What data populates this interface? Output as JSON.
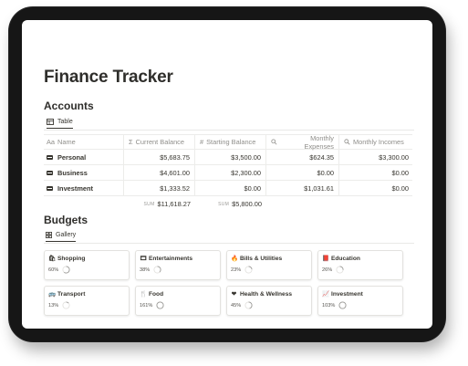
{
  "page": {
    "title": "Finance Tracker"
  },
  "accounts": {
    "heading": "Accounts",
    "view_label": "Table",
    "columns": [
      {
        "icon": "Aa",
        "label": "Name"
      },
      {
        "icon": "Σ",
        "label": "Current Balance"
      },
      {
        "icon": "#",
        "label": "Starting Balance"
      },
      {
        "icon": "🔍",
        "label": "Monthly Expenses"
      },
      {
        "icon": "🔍",
        "label": "Monthly Incomes"
      }
    ],
    "rows": [
      {
        "name": "Personal",
        "current": "$5,683.75",
        "starting": "$3,500.00",
        "expenses": "$624.35",
        "incomes": "$3,300.00"
      },
      {
        "name": "Business",
        "current": "$4,601.00",
        "starting": "$2,300.00",
        "expenses": "$0.00",
        "incomes": "$0.00"
      },
      {
        "name": "Investment",
        "current": "$1,333.52",
        "starting": "$0.00",
        "expenses": "$1,031.61",
        "incomes": "$0.00"
      }
    ],
    "sum_label": "SUM",
    "sum_current": "$11,618.27",
    "sum_starting": "$5,800.00"
  },
  "budgets": {
    "heading": "Budgets",
    "view_label": "Gallery",
    "cards": [
      {
        "name": "Shopping",
        "icon": "bag-icon",
        "glyph": "🛍",
        "percent_label": "60%",
        "progress": 0.6
      },
      {
        "name": "Entertainments",
        "icon": "film-icon",
        "glyph": "🎞",
        "percent_label": "38%",
        "progress": 0.38
      },
      {
        "name": "Bills & Utilities",
        "icon": "flame-icon",
        "glyph": "🔥",
        "percent_label": "23%",
        "progress": 0.23
      },
      {
        "name": "Education",
        "icon": "book-icon",
        "glyph": "📕",
        "percent_label": "26%",
        "progress": 0.26
      },
      {
        "name": "Transport",
        "icon": "bus-icon",
        "glyph": "🚌",
        "percent_label": "13%",
        "progress": 0.13
      },
      {
        "name": "Food",
        "icon": "fork-knife-icon",
        "glyph": "🍴",
        "percent_label": "161%",
        "progress": 1.0
      },
      {
        "name": "Health & Wellness",
        "icon": "heart-icon",
        "glyph": "❤",
        "percent_label": "45%",
        "progress": 0.45
      },
      {
        "name": "Investment",
        "icon": "chart-icon",
        "glyph": "📈",
        "percent_label": "103%",
        "progress": 1.0
      }
    ]
  },
  "colors": {
    "text": "#37352f",
    "muted": "#8f8e8a",
    "ring_track": "#e3e2df",
    "ring_fill": "#9b9a97"
  }
}
